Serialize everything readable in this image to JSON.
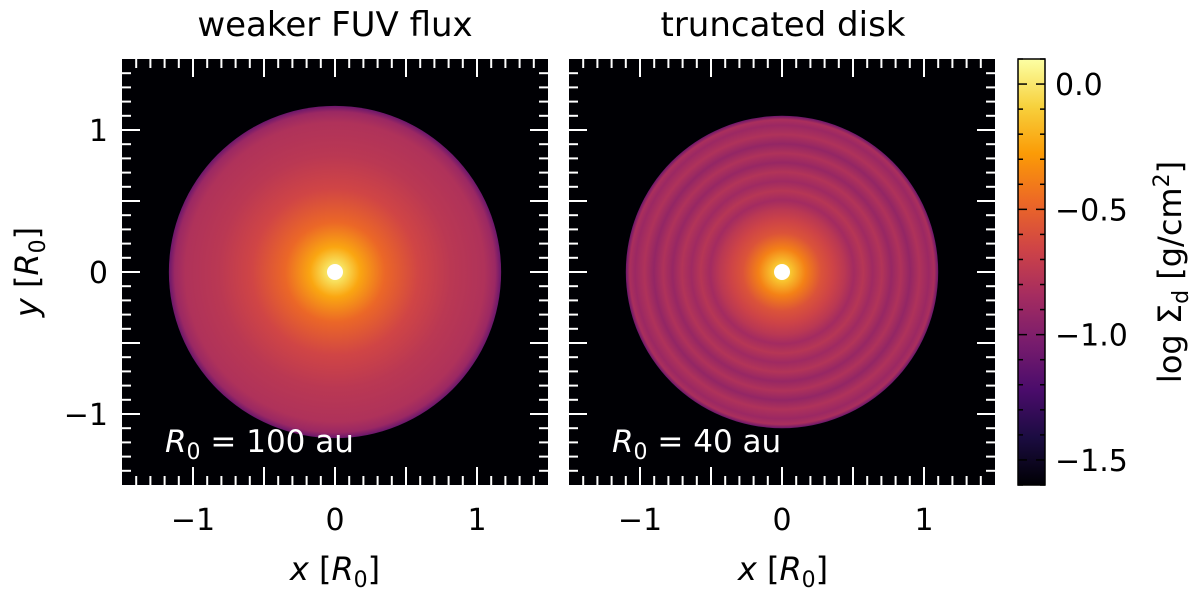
{
  "chart_data": [
    {
      "type": "heatmap",
      "title": "weaker FUV flux",
      "xlabel": "x [R0]",
      "xlabel_parts": {
        "var": "x",
        "unit": "R",
        "sub": "0"
      },
      "ylabel": "y [R0]",
      "ylabel_parts": {
        "var": "y",
        "unit": "R",
        "sub": "0"
      },
      "xlim": [
        -1.5,
        1.5
      ],
      "ylim": [
        -1.5,
        1.5
      ],
      "xticks": [
        -1,
        0,
        1
      ],
      "xtick_labels": [
        "−1",
        "0",
        "1"
      ],
      "yticks": [
        -1,
        0,
        1
      ],
      "ytick_labels": [
        "−1",
        "0",
        "1"
      ],
      "annotation": {
        "var": "R",
        "sub": "0",
        "rest": " = 100 au"
      },
      "disk_radius": 1.17,
      "rings": false
    },
    {
      "type": "heatmap",
      "title": "truncated disk",
      "xlabel": "x [R0]",
      "xlabel_parts": {
        "var": "x",
        "unit": "R",
        "sub": "0"
      },
      "xlim": [
        -1.5,
        1.5
      ],
      "ylim": [
        -1.5,
        1.5
      ],
      "xticks": [
        -1,
        0,
        1
      ],
      "xtick_labels": [
        "−1",
        "0",
        "1"
      ],
      "yticks": [
        -1,
        0,
        1
      ],
      "annotation": {
        "var": "R",
        "sub": "0",
        "rest": " = 40 au"
      },
      "disk_radius": 1.1,
      "rings": true
    }
  ],
  "colorbar": {
    "label": "log Σd [g/cm2]",
    "label_parts": {
      "pre": "log Σ",
      "sub": "d",
      "mid": " [g/cm",
      "sup": "2",
      "post": "]"
    },
    "range": [
      -1.6,
      0.1
    ],
    "ticks": [
      0.0,
      -0.5,
      -1.0,
      -1.5
    ],
    "tick_labels": [
      "0.0",
      "−0.5",
      "−1.0",
      "−1.5"
    ],
    "colormap": "inferno",
    "stops": [
      "#000004",
      "#1b0c41",
      "#4a0c6b",
      "#781c6d",
      "#a52c60",
      "#cf4446",
      "#ed6925",
      "#fb9b06",
      "#f7d13d",
      "#fcffa4"
    ]
  }
}
